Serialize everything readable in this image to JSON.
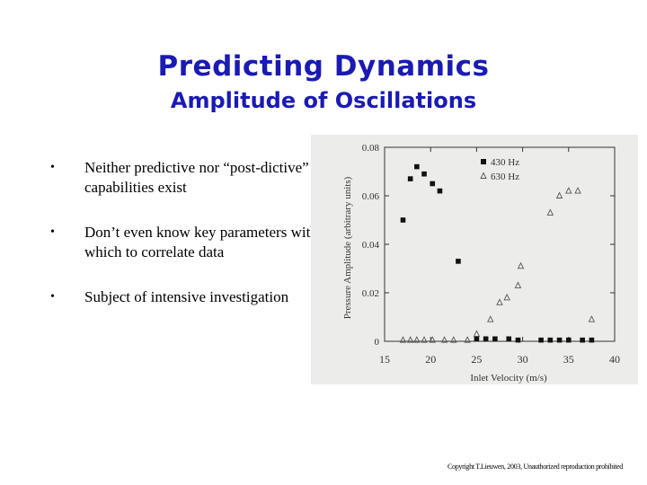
{
  "slide": {
    "title": "Predicting Dynamics",
    "subtitle": "Amplitude of Oscillations",
    "bullets": [
      "Neither predictive nor “post-dictive” capabilities exist",
      "Don’t even know key parameters with which to correlate data",
      "Subject of intensive investigation"
    ],
    "bullet_symbol": "•",
    "copyright": "Copyright T.Lieuwen, 2003, Unauthorized reproduction prohibited"
  },
  "chart_data": {
    "type": "scatter",
    "title": "",
    "xlabel": "Inlet Velocity (m/s)",
    "ylabel": "Pressure Amplitude (arbitrary units)",
    "xlim": [
      15,
      40
    ],
    "ylim": [
      0,
      0.08
    ],
    "xticks": [
      15,
      20,
      25,
      30,
      35,
      40
    ],
    "yticks": [
      0,
      0.02,
      0.04,
      0.06,
      0.08
    ],
    "ytick_labels": [
      "0",
      "0.02",
      "0.04",
      "0.06",
      "0.08"
    ],
    "grid": false,
    "legend_position": "top-right",
    "series": [
      {
        "name": "430 Hz",
        "marker": "square",
        "color": "#111111",
        "x": [
          17.0,
          17.8,
          18.5,
          19.3,
          20.2,
          21.0,
          23.0,
          25.0,
          26.0,
          27.0,
          28.5,
          29.5,
          32.0,
          33.0,
          34.0,
          35.0,
          36.5,
          37.5
        ],
        "y": [
          0.05,
          0.067,
          0.072,
          0.069,
          0.065,
          0.062,
          0.033,
          0.001,
          0.001,
          0.001,
          0.001,
          0.0005,
          0.0005,
          0.0005,
          0.0005,
          0.0005,
          0.0005,
          0.0005
        ]
      },
      {
        "name": "630 Hz",
        "marker": "triangle",
        "color": "#555555",
        "x": [
          17.0,
          17.8,
          18.5,
          19.3,
          20.2,
          21.5,
          22.5,
          24.0,
          25.0,
          26.5,
          27.5,
          28.3,
          29.5,
          29.8,
          33.0,
          34.0,
          35.0,
          36.0,
          37.5
        ],
        "y": [
          0.0005,
          0.0005,
          0.0005,
          0.0005,
          0.0005,
          0.0005,
          0.0005,
          0.0005,
          0.003,
          0.009,
          0.016,
          0.018,
          0.023,
          0.031,
          0.053,
          0.06,
          0.062,
          0.062,
          0.009
        ]
      }
    ]
  }
}
